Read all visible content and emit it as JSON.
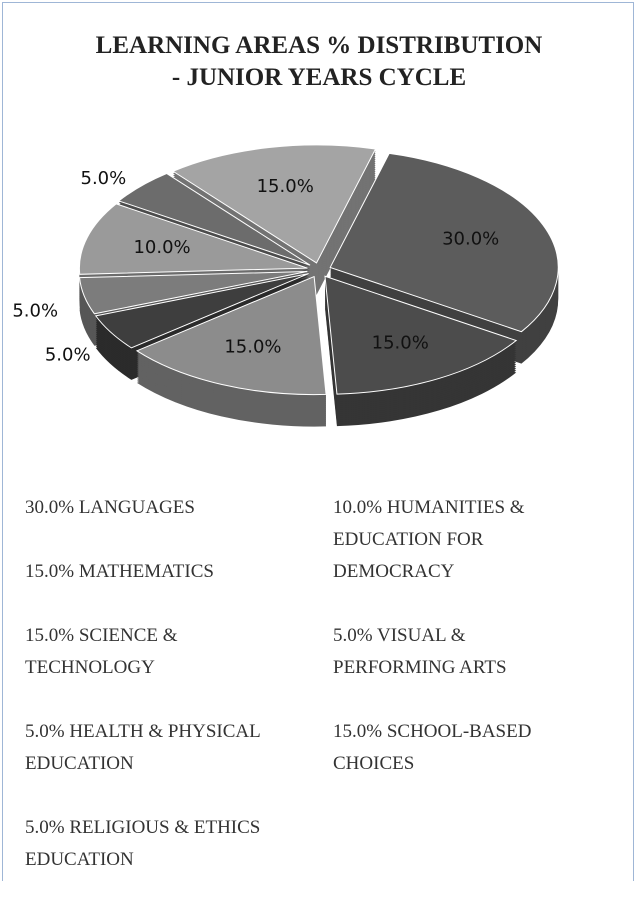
{
  "chart_data": {
    "type": "pie",
    "title_lines": [
      "LEARNING AREAS % DISTRIBUTION",
      "- JUNIOR YEARS CYCLE"
    ],
    "categories": [
      "LANGUAGES",
      "MATHEMATICS",
      "SCIENCE & TECHNOLOGY",
      "HEALTH & PHYSICAL EDUCATION",
      "RELIGIOUS & ETHICS EDUCATION",
      "HUMANITIES & EDUCATION FOR DEMOCRACY",
      "VISUAL & PERFORMING ARTS",
      "SCHOOL-BASED CHOICES"
    ],
    "values": [
      30,
      15,
      15,
      5,
      5,
      10,
      5,
      15
    ],
    "value_labels": [
      "30.0%",
      "15.0%",
      "15.0%",
      "5.0%",
      "5.0%",
      "10.0%",
      "5.0%",
      "15.0%"
    ],
    "colors": [
      "#5c5c5c",
      "#4c4c4c",
      "#8c8c8c",
      "#3e3e3e",
      "#7c7c7c",
      "#9a9a9a",
      "#6c6c6c",
      "#a4a4a4"
    ]
  }
}
